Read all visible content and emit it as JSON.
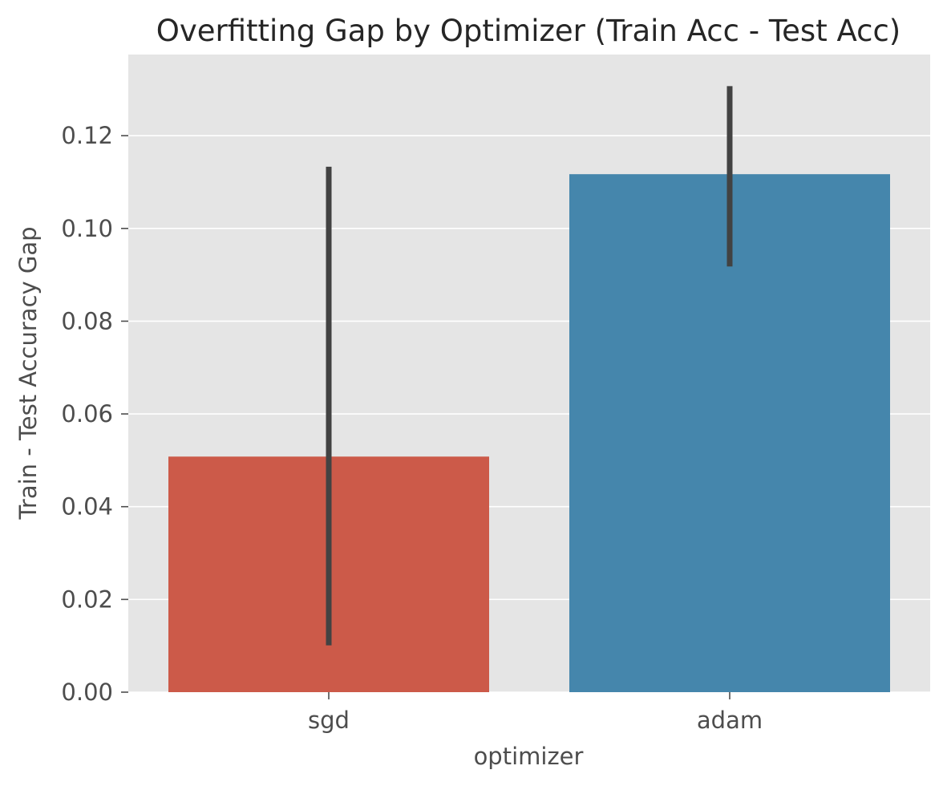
{
  "chart_data": {
    "type": "bar",
    "title": "Overfitting Gap by Optimizer (Train Acc - Test Acc)",
    "xlabel": "optimizer",
    "ylabel": "Train - Test Accuracy Gap",
    "categories": [
      "sgd",
      "adam"
    ],
    "values": [
      0.0508,
      0.1117
    ],
    "error_bars": [
      {
        "low": 0.0101,
        "high": 0.1133
      },
      {
        "low": 0.0918,
        "high": 0.1307
      }
    ],
    "ylim": [
      0,
      0.1375
    ],
    "yticks": [
      0.0,
      0.02,
      0.04,
      0.06,
      0.08,
      0.1,
      0.12
    ],
    "ytick_labels": [
      "0.00",
      "0.02",
      "0.04",
      "0.06",
      "0.08",
      "0.10",
      "0.12"
    ],
    "grid": true,
    "legend": "none",
    "colors": {
      "background": "#e5e5e5",
      "grid": "#ffffff",
      "bars": [
        "#cc5a49",
        "#4586ac"
      ],
      "error_bar": "#424242"
    }
  }
}
